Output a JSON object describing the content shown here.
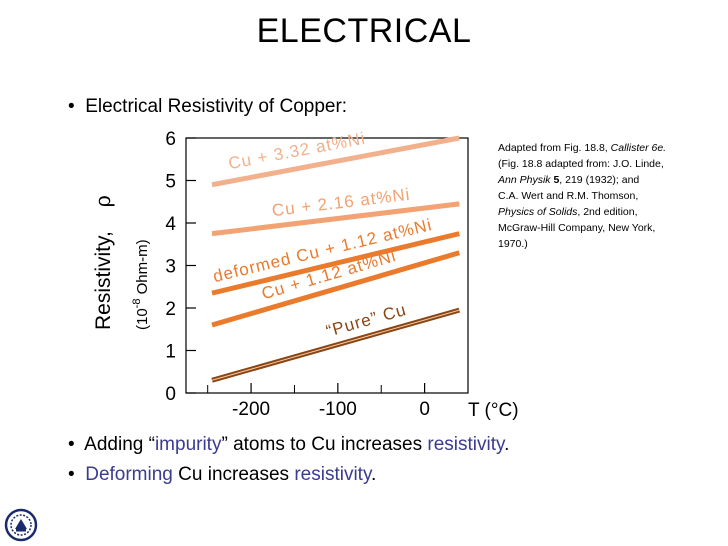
{
  "slide": {
    "title": "ELECTRICAL",
    "subtitle": "Electrical Resistivity of Copper:",
    "bullet_glyph": "•",
    "bullets": [
      {
        "p1": "Adding “",
        "h1": "impurity",
        "p2": "” atoms to Cu increases ",
        "h2": "resistivity",
        "p3": "."
      },
      {
        "h1": "Deforming",
        "p1": " Cu increases ",
        "h2": "resistivity",
        "p2": "."
      }
    ],
    "accent_color": "#3b3b8f"
  },
  "citation": {
    "line1": "Adapted from Fig. 18.8, ",
    "line1_it": "Callister 6e.",
    "line2": "(Fig. 18.8 adapted from: J.O. Linde,",
    "line3_it": "Ann Physik",
    "line3_b": " 5",
    "line3": ", 219 (1932); and",
    "line4": "C.A. Wert and R.M. Thomson,",
    "line5_it": "Physics of Solids",
    "line5": ", 2nd edition,",
    "line6": "McGraw-Hill Company, New York,",
    "line7": "1970.)"
  },
  "chart_data": {
    "type": "line",
    "xlabel": "T (°C)",
    "ylabel": "Resistivity,",
    "ylabel_symbol": "ρ",
    "yunit_prefix": "(10",
    "yunit_exp": "-8",
    "yunit_suffix": " Ohm-m)",
    "xlim": [
      -275,
      50
    ],
    "ylim": [
      0,
      6
    ],
    "x_ticks": [
      -200,
      -100,
      0
    ],
    "x_tick_labels": [
      "-200",
      "-100",
      "0"
    ],
    "y_ticks": [
      0,
      1,
      2,
      3,
      4,
      5,
      6
    ],
    "y_tick_labels": [
      "0",
      "1",
      "2",
      "3",
      "4",
      "5",
      "6"
    ],
    "series": [
      {
        "name": "Cu + 3.32 at%Ni",
        "x": [
          -245,
          40
        ],
        "y": [
          4.9,
          6.0
        ],
        "color": "#f2b08c"
      },
      {
        "name": "Cu + 2.16 at%Ni",
        "x": [
          -245,
          40
        ],
        "y": [
          3.75,
          4.45
        ],
        "color": "#f2a273"
      },
      {
        "name": "deformed Cu + 1.12 at%Ni",
        "x": [
          -245,
          40
        ],
        "y": [
          2.35,
          3.75
        ],
        "color": "#ea7a2c"
      },
      {
        "name": "Cu + 1.12 at%Ni",
        "x": [
          -245,
          40
        ],
        "y": [
          1.6,
          3.3
        ],
        "color": "#ea7a2c"
      },
      {
        "name": "“Pure” Cu",
        "x": [
          -245,
          40
        ],
        "y": [
          0.3,
          1.95
        ],
        "color": "#8b4513"
      }
    ]
  }
}
